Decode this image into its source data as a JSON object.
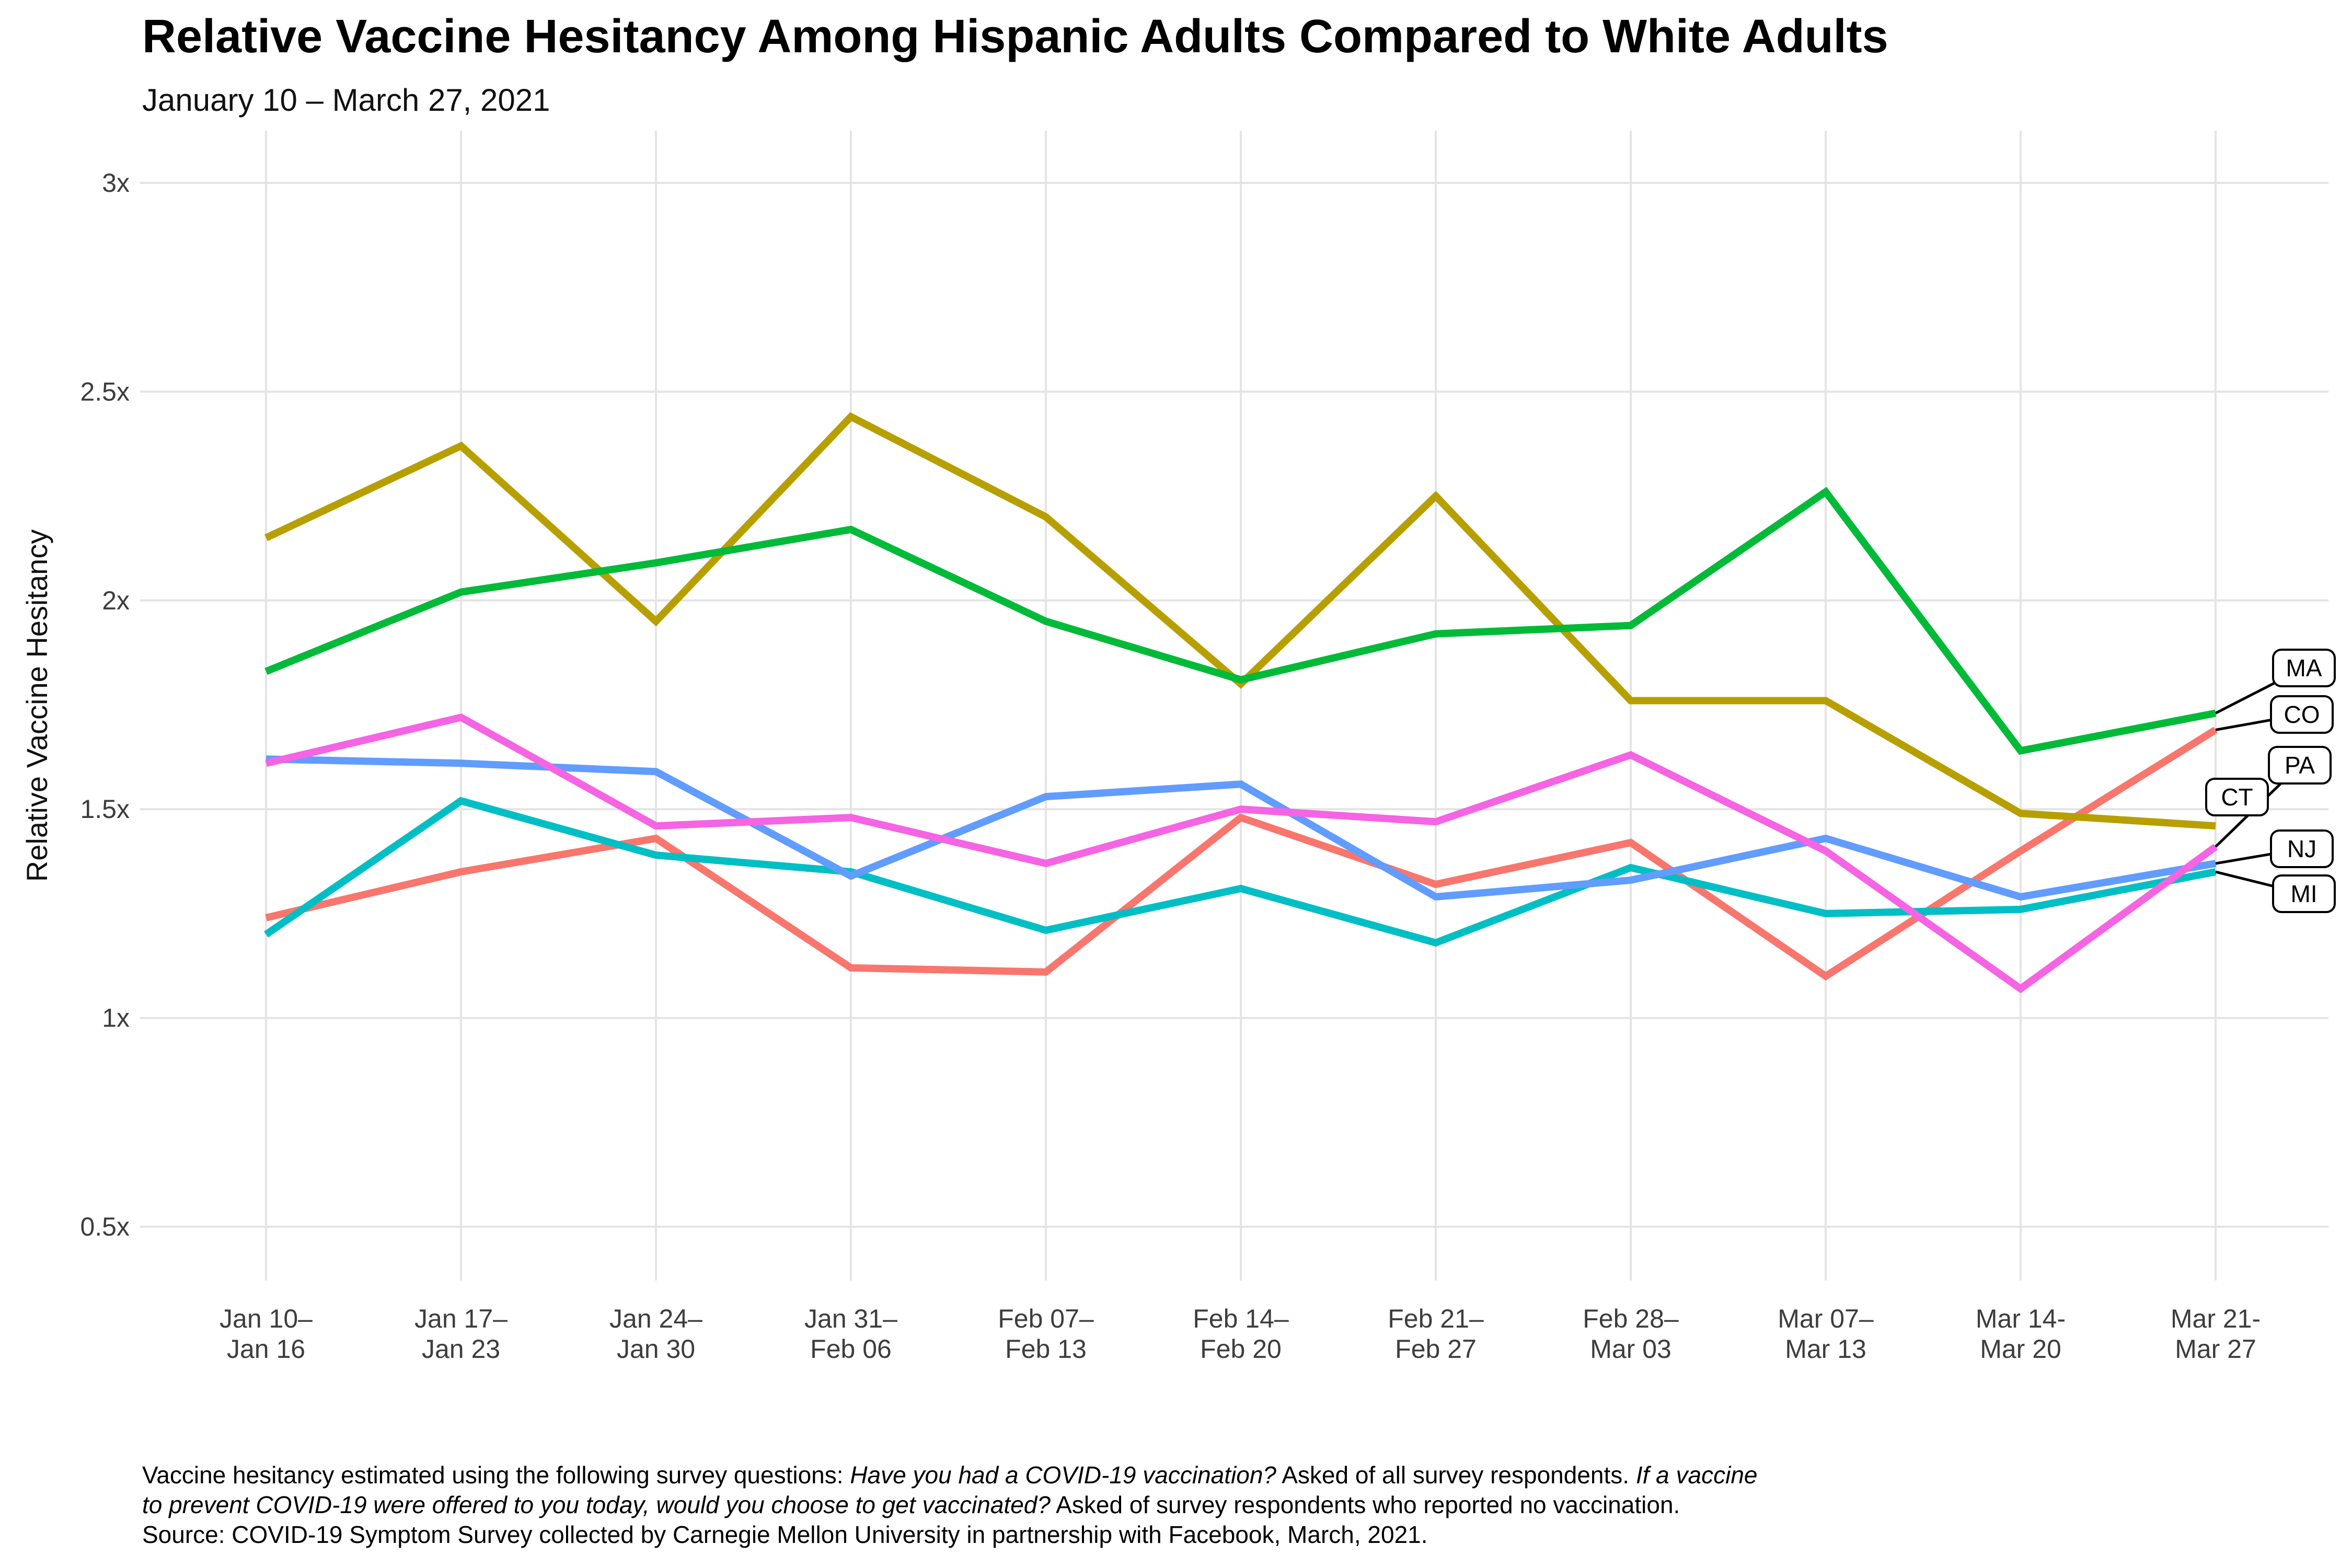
{
  "header": {
    "title": "Relative Vaccine Hesitancy Among Hispanic Adults Compared to White Adults",
    "subtitle": "January 10 – March 27, 2021"
  },
  "chart_data": {
    "type": "line",
    "title": "Relative Vaccine Hesitancy Among Hispanic Adults Compared to White Adults",
    "subtitle": "January 10 – March 27, 2021",
    "xlabel": "",
    "ylabel": "Relative Vaccine Hesitancy",
    "ylim": [
      0.5,
      3.0
    ],
    "grid": true,
    "legend_position": "direct-labels-right",
    "y_ticks": [
      {
        "value": 3.0,
        "label": "3x"
      },
      {
        "value": 2.5,
        "label": "2.5x"
      },
      {
        "value": 2.0,
        "label": "2x"
      },
      {
        "value": 1.5,
        "label": "1.5x"
      },
      {
        "value": 1.0,
        "label": "1x"
      },
      {
        "value": 0.5,
        "label": "0.5x"
      }
    ],
    "x_tick_labels": [
      [
        "Jan 10–",
        "Jan 16"
      ],
      [
        "Jan 17–",
        "Jan 23"
      ],
      [
        "Jan 24–",
        "Jan 30"
      ],
      [
        "Jan 31–",
        "Feb 06"
      ],
      [
        "Feb 07–",
        "Feb 13"
      ],
      [
        "Feb 14–",
        "Feb 20"
      ],
      [
        "Feb 21–",
        "Feb 27"
      ],
      [
        "Feb 28–",
        "Mar 03"
      ],
      [
        "Mar 07–",
        "Mar 13"
      ],
      [
        "Mar 14-",
        "Mar 20"
      ],
      [
        "Mar 21-",
        "Mar 27"
      ]
    ],
    "series": [
      {
        "name": "CO",
        "color": "#F8766D",
        "values": [
          1.24,
          1.35,
          1.43,
          1.12,
          1.11,
          1.48,
          1.32,
          1.42,
          1.1,
          1.4,
          1.69
        ]
      },
      {
        "name": "CT",
        "color": "#B79F00",
        "values": [
          2.15,
          2.37,
          1.95,
          2.44,
          2.2,
          1.8,
          2.25,
          1.76,
          1.76,
          1.49,
          1.46
        ]
      },
      {
        "name": "MA",
        "color": "#00BA38",
        "values": [
          1.83,
          2.02,
          2.09,
          2.17,
          1.95,
          1.81,
          1.92,
          1.94,
          2.26,
          1.64,
          1.73
        ]
      },
      {
        "name": "MI",
        "color": "#00BFC4",
        "values": [
          1.2,
          1.52,
          1.39,
          1.35,
          1.21,
          1.31,
          1.18,
          1.36,
          1.25,
          1.26,
          1.35
        ]
      },
      {
        "name": "NJ",
        "color": "#619CFF",
        "values": [
          1.62,
          1.61,
          1.59,
          1.34,
          1.53,
          1.56,
          1.29,
          1.33,
          1.43,
          1.29,
          1.37
        ]
      },
      {
        "name": "PA",
        "color": "#F564E3",
        "values": [
          1.61,
          1.72,
          1.46,
          1.48,
          1.37,
          1.5,
          1.47,
          1.63,
          1.4,
          1.07,
          1.41
        ]
      }
    ]
  },
  "caption": {
    "lines": [
      [
        {
          "t": "Vaccine hesitancy estimated using the following survey questions: ",
          "i": false
        },
        {
          "t": "Have you had a COVID-19 vaccination?",
          "i": true
        },
        {
          "t": " Asked of all survey respondents. ",
          "i": false
        },
        {
          "t": "If a vaccine",
          "i": true
        }
      ],
      [
        {
          "t": "to prevent COVID-19 were offered to you today, would you choose to get vaccinated?",
          "i": true
        },
        {
          "t": " Asked of survey respondents who reported no vaccination.",
          "i": false
        }
      ],
      [
        {
          "t": "Source: COVID-19 Symptom Survey collected by Carnegie Mellon University in partnership with Facebook, March, 2021.",
          "i": false
        }
      ]
    ]
  }
}
